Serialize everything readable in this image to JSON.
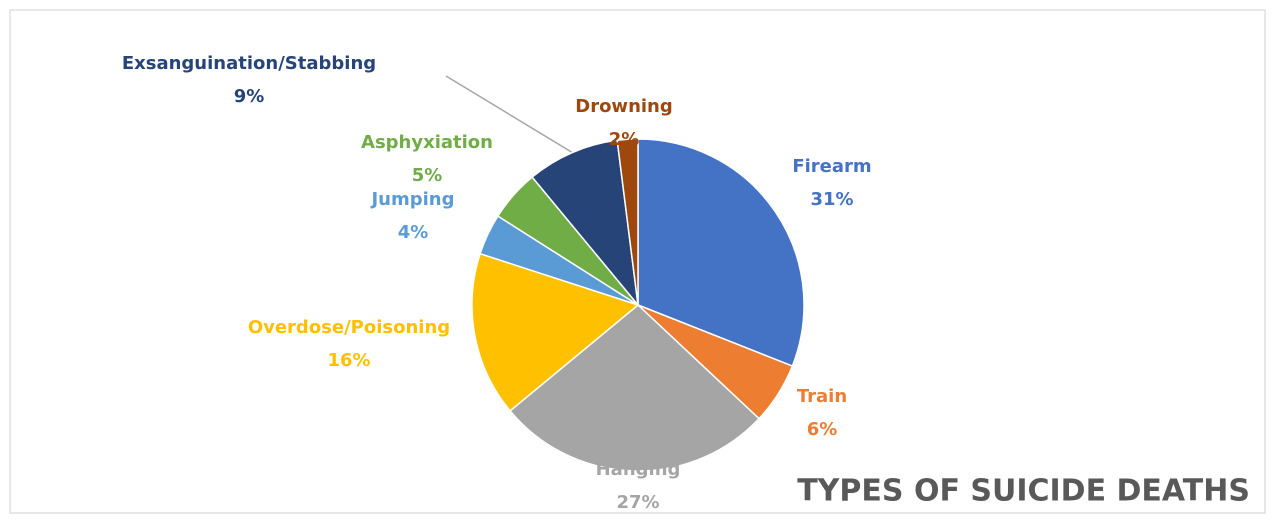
{
  "chart_data": {
    "type": "pie",
    "title": "TYPES OF SUICIDE DEATHS",
    "categories": [
      "Firearm",
      "Train",
      "Hanging",
      "Overdose/Poisoning",
      "Jumping",
      "Asphyxiation",
      "Exsanguination/Stabbing",
      "Drowning"
    ],
    "values": [
      31,
      6,
      27,
      16,
      4,
      5,
      9,
      2
    ],
    "value_labels": [
      "31%",
      "6%",
      "27%",
      "16%",
      "4%",
      "5%",
      "9%",
      "2%"
    ],
    "colors": [
      "#4472c4",
      "#ed7d31",
      "#a5a5a5",
      "#ffc000",
      "#5b9bd5",
      "#70ad47",
      "#264478",
      "#9e480e"
    ]
  }
}
